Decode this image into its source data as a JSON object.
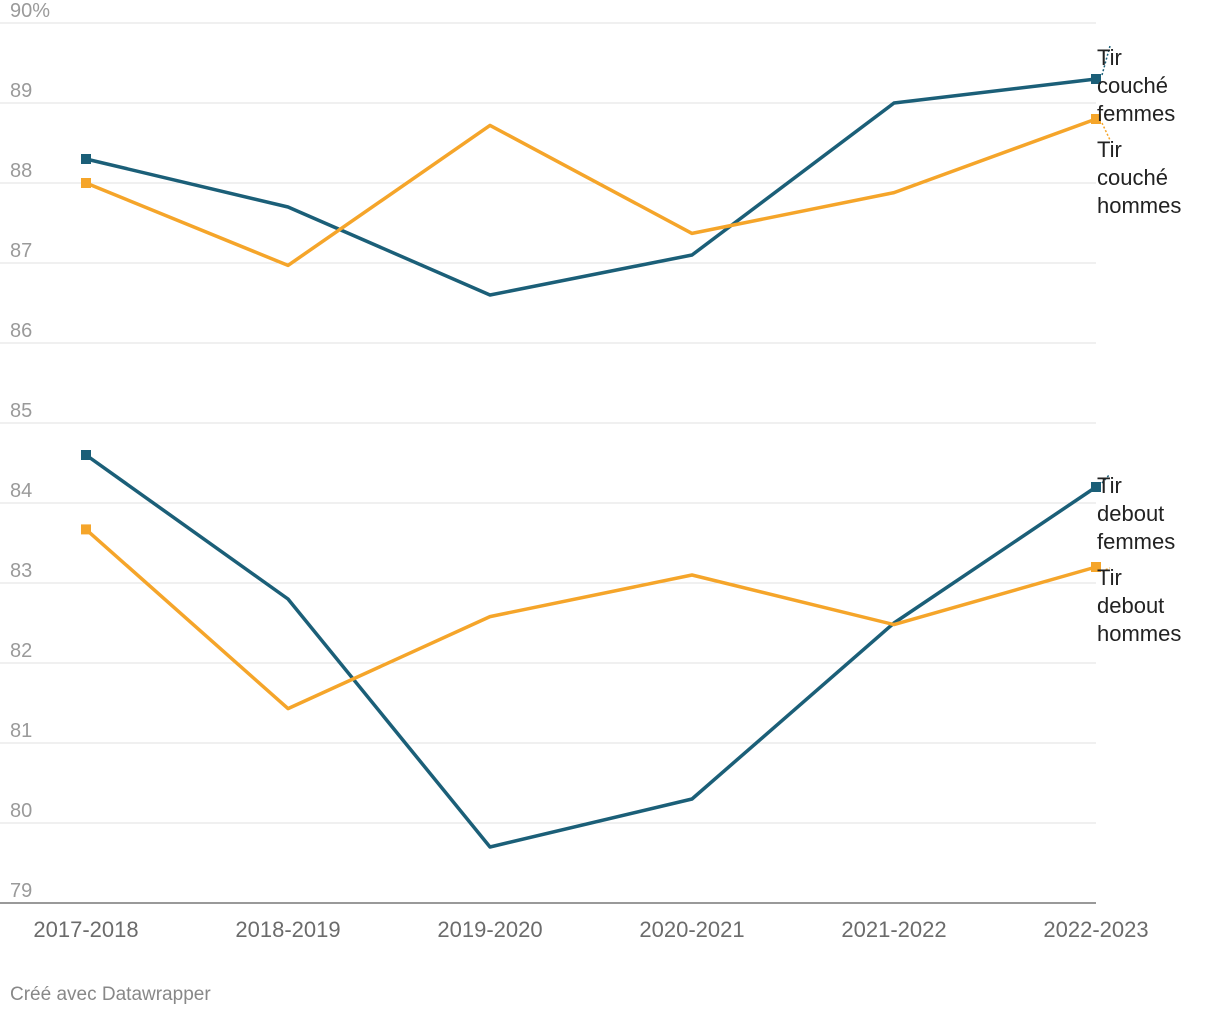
{
  "chart_data": {
    "type": "line",
    "categories": [
      "2017-2018",
      "2018-2019",
      "2019-2020",
      "2020-2021",
      "2021-2022",
      "2022-2023"
    ],
    "ylim": [
      79,
      90
    ],
    "yticks": [
      "90%",
      "89",
      "88",
      "87",
      "86",
      "85",
      "84",
      "83",
      "82",
      "81",
      "80",
      "79"
    ],
    "grid": true,
    "series": [
      {
        "name": "Tir couché femmes",
        "label_lines": [
          "Tir",
          "couché",
          "femmes"
        ],
        "color": "#1b5f78",
        "values": [
          88.3,
          87.7,
          86.6,
          87.1,
          89.0,
          89.3
        ]
      },
      {
        "name": "Tir couché hommes",
        "label_lines": [
          "Tir",
          "couché",
          "hommes"
        ],
        "color": "#f5a52a",
        "values": [
          88.0,
          86.97,
          88.72,
          87.37,
          87.88,
          88.8
        ]
      },
      {
        "name": "Tir debout femmes",
        "label_lines": [
          "Tir",
          "debout",
          "femmes"
        ],
        "color": "#1b5f78",
        "values": [
          84.6,
          82.8,
          79.7,
          80.3,
          82.5,
          84.2
        ]
      },
      {
        "name": "Tir debout hommes",
        "label_lines": [
          "Tir",
          "debout",
          "hommes"
        ],
        "color": "#f5a52a",
        "values": [
          83.67,
          81.43,
          82.58,
          83.1,
          82.48,
          83.2
        ]
      }
    ]
  },
  "footer": {
    "credit": "Créé avec Datawrapper"
  }
}
